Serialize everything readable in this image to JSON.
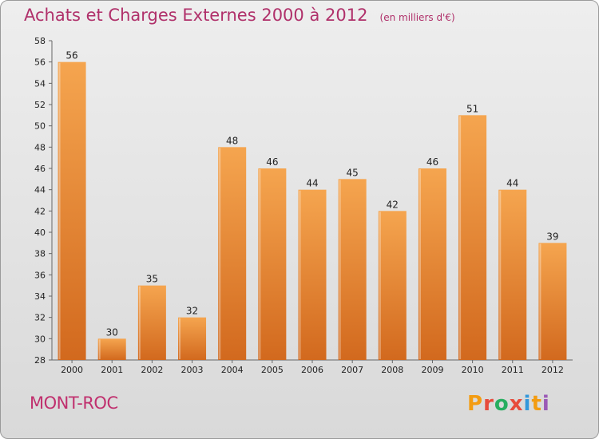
{
  "header": {
    "title": "Achats et Charges Externes 2000 à 2012",
    "subtitle": "(en milliers d'€)"
  },
  "footer": {
    "commune": "MONT-ROC",
    "logo_letters": [
      "P",
      "r",
      "o",
      "x",
      "i",
      "t",
      "i"
    ]
  },
  "colors": {
    "title": "#b0306a",
    "bar_top": "#f5a54f",
    "bar_bottom": "#d2691e",
    "logo": [
      "#f39c12",
      "#e74c3c",
      "#27ae60",
      "#e74c3c",
      "#3498db",
      "#f39c12",
      "#9b59b6"
    ]
  },
  "chart_data": {
    "type": "bar",
    "title": "Achats et Charges Externes 2000 à 2012",
    "subtitle": "(en milliers d'€)",
    "categories": [
      "2000",
      "2001",
      "2002",
      "2003",
      "2004",
      "2005",
      "2006",
      "2007",
      "2008",
      "2009",
      "2010",
      "2011",
      "2012"
    ],
    "values": [
      56,
      30,
      35,
      32,
      48,
      46,
      44,
      45,
      42,
      46,
      51,
      44,
      39
    ],
    "ylim": [
      28,
      58
    ],
    "yticks": [
      28,
      30,
      32,
      34,
      36,
      38,
      40,
      42,
      44,
      46,
      48,
      50,
      52,
      54,
      56,
      58
    ],
    "grid": false,
    "xlabel": "",
    "ylabel": ""
  }
}
